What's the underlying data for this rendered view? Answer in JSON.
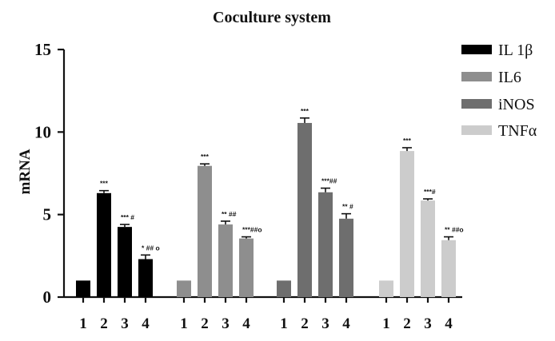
{
  "chart_data": {
    "type": "bar",
    "title": "Coculture system",
    "xlabel": "",
    "ylabel": "mRNA",
    "ylim": [
      0,
      15
    ],
    "yticks": [
      "0",
      "5",
      "10",
      "15"
    ],
    "categories": [
      "1",
      "2",
      "3",
      "4"
    ],
    "legend_position": "right",
    "grid": false,
    "series": [
      {
        "name": "IL 1β",
        "color": "#000000",
        "values": [
          1.0,
          6.3,
          4.25,
          2.3
        ],
        "errors": [
          0,
          0.15,
          0.15,
          0.25
        ],
        "annotations": [
          "",
          "***",
          "*** #",
          "* ## ο"
        ]
      },
      {
        "name": "IL6",
        "color": "#8e8e8e",
        "values": [
          1.0,
          7.95,
          4.4,
          3.55
        ],
        "errors": [
          0,
          0.12,
          0.2,
          0.1
        ],
        "annotations": [
          "",
          "***",
          "** ##",
          "***##ο"
        ]
      },
      {
        "name": "iNOS",
        "color": "#6e6e6e",
        "values": [
          1.0,
          10.55,
          6.35,
          4.75
        ],
        "errors": [
          0,
          0.3,
          0.25,
          0.3
        ],
        "annotations": [
          "",
          "***",
          "***##",
          "** #"
        ]
      },
      {
        "name": "TNFα",
        "color": "#cccccc",
        "values": [
          1.0,
          8.85,
          5.85,
          3.45
        ],
        "errors": [
          0,
          0.2,
          0.1,
          0.2
        ],
        "annotations": [
          "",
          "***",
          "***#",
          "** ##ο"
        ]
      }
    ]
  }
}
